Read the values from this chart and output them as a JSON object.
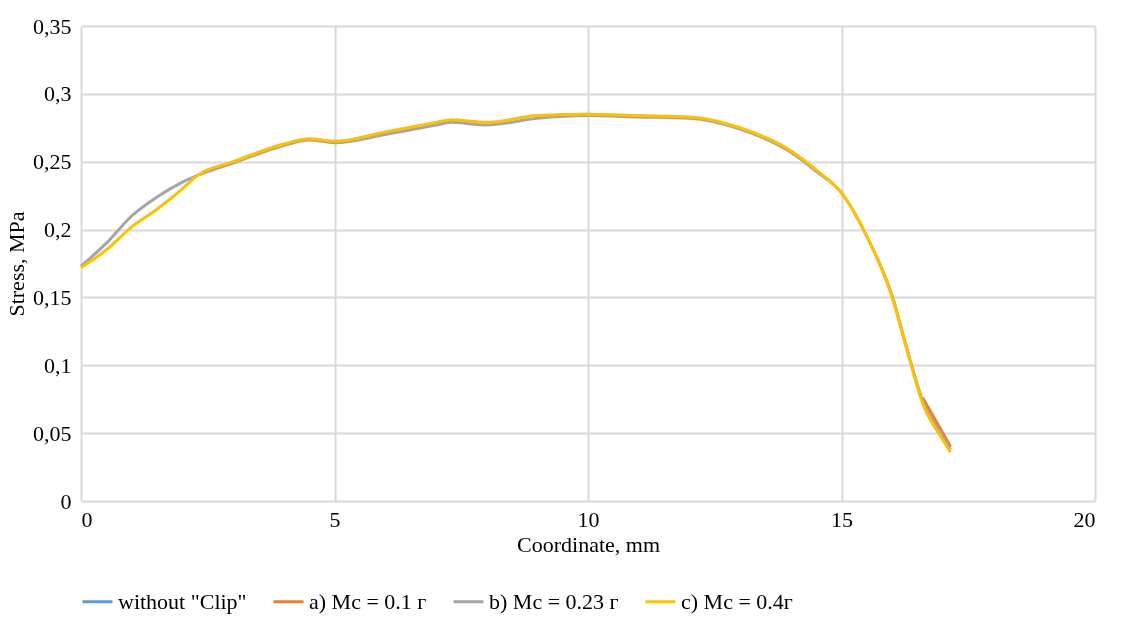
{
  "chart_data": {
    "type": "line",
    "xlabel": "Coordinate, mm",
    "ylabel": "Stress, MPa",
    "x": [
      0,
      0.5,
      1.0,
      1.5,
      2.0,
      2.3,
      3.0,
      4.0,
      4.5,
      5.0,
      6.0,
      7.0,
      7.3,
      8.0,
      9.0,
      10.0,
      11.0,
      12.0,
      13.0,
      14.0,
      14.5,
      15.0,
      15.5,
      16.0,
      16.3,
      16.6,
      17.0,
      17.15
    ],
    "series": [
      {
        "name": "without \"Clip\"",
        "color": "#5b9bd5",
        "values": [
          null,
          null,
          null,
          null,
          null,
          null,
          null,
          null,
          null,
          null,
          null,
          null,
          null,
          null,
          null,
          null,
          null,
          null,
          null,
          null,
          null,
          null,
          null,
          null,
          null,
          null,
          null,
          null
        ]
      },
      {
        "name": "a) Mc = 0.1 г",
        "color": "#ed7d31",
        "values": [
          null,
          null,
          null,
          null,
          null,
          null,
          null,
          null,
          null,
          null,
          null,
          null,
          null,
          null,
          null,
          null,
          null,
          null,
          null,
          null,
          null,
          null,
          null,
          null,
          null,
          0.076,
          0.05,
          0.04
        ]
      },
      {
        "name": "b) Mc = 0.23 г",
        "color": "#a5a5a5",
        "values": [
          0.173,
          0.19,
          0.21,
          0.224,
          0.235,
          0.24,
          0.249,
          0.262,
          0.266,
          0.264,
          0.27,
          0.277,
          0.279,
          0.277,
          0.282,
          0.284,
          0.283,
          0.282,
          0.274,
          0.257,
          0.243,
          0.227,
          0.195,
          0.151,
          0.111,
          0.074,
          0.047,
          0.038
        ]
      },
      {
        "name": "c) Mc = 0.4г",
        "color": "#ffc000",
        "values": [
          0.172,
          0.185,
          0.202,
          0.215,
          0.23,
          0.24,
          0.25,
          0.263,
          0.267,
          0.265,
          0.272,
          0.279,
          0.281,
          0.279,
          0.284,
          0.285,
          0.284,
          0.283,
          0.275,
          0.258,
          0.244,
          0.227,
          0.195,
          0.15,
          0.11,
          0.072,
          0.045,
          0.036
        ]
      }
    ],
    "xlim": [
      0,
      20
    ],
    "xticks": [
      0,
      5,
      10,
      15,
      20
    ],
    "ylim": [
      0,
      0.35
    ],
    "yticks": [
      {
        "value": 0,
        "label": "0"
      },
      {
        "value": 0.05,
        "label": "0,05"
      },
      {
        "value": 0.1,
        "label": "0,1"
      },
      {
        "value": 0.15,
        "label": "0,15"
      },
      {
        "value": 0.2,
        "label": "0,2"
      },
      {
        "value": 0.25,
        "label": "0,25"
      },
      {
        "value": 0.3,
        "label": "0,3"
      },
      {
        "value": 0.35,
        "label": "0,35"
      }
    ],
    "grid": true,
    "legend": "bottom",
    "marker": "none",
    "line_style": "solid"
  }
}
